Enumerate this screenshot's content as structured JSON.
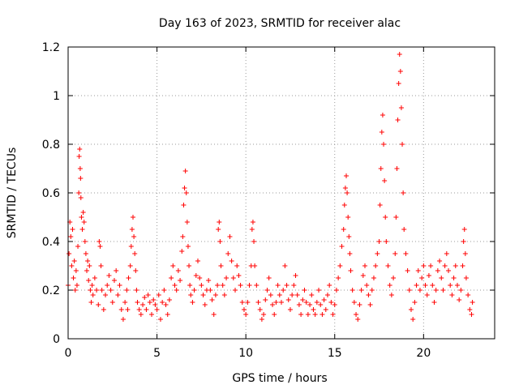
{
  "chart_data": {
    "type": "scatter",
    "title": "Day 163 of 2023, SRMTID for receiver alac",
    "xlabel": "GPS time / hours",
    "ylabel": "SRMTID / TECUs",
    "xlim": [
      0,
      24
    ],
    "ylim": [
      0,
      1.2
    ],
    "xticks": [
      0,
      5,
      10,
      15,
      20
    ],
    "xtick_labels": [
      "0",
      "5",
      "10",
      "15",
      "20"
    ],
    "yticks": [
      0,
      0.2,
      0.4,
      0.6,
      0.8,
      1,
      1.2
    ],
    "ytick_labels": [
      "0",
      "0.2",
      "0.4",
      "0.6",
      "0.8",
      "1",
      "1.2"
    ],
    "grid": true,
    "marker": "+",
    "color": "#ff0000",
    "series": [
      {
        "name": "SRMTID",
        "points": [
          [
            0.0,
            0.22
          ],
          [
            0.05,
            0.35
          ],
          [
            0.1,
            0.48
          ],
          [
            0.15,
            0.42
          ],
          [
            0.2,
            0.3
          ],
          [
            0.25,
            0.45
          ],
          [
            0.3,
            0.25
          ],
          [
            0.35,
            0.32
          ],
          [
            0.4,
            0.2
          ],
          [
            0.45,
            0.28
          ],
          [
            0.5,
            0.22
          ],
          [
            0.55,
            0.38
          ],
          [
            0.6,
            0.6
          ],
          [
            0.62,
            0.75
          ],
          [
            0.65,
            0.78
          ],
          [
            0.68,
            0.7
          ],
          [
            0.7,
            0.66
          ],
          [
            0.72,
            0.58
          ],
          [
            0.75,
            0.5
          ],
          [
            0.8,
            0.45
          ],
          [
            0.85,
            0.52
          ],
          [
            0.9,
            0.48
          ],
          [
            0.95,
            0.4
          ],
          [
            1.0,
            0.35
          ],
          [
            1.05,
            0.28
          ],
          [
            1.1,
            0.32
          ],
          [
            1.15,
            0.24
          ],
          [
            1.2,
            0.3
          ],
          [
            1.25,
            0.2
          ],
          [
            1.3,
            0.15
          ],
          [
            1.35,
            0.22
          ],
          [
            1.4,
            0.18
          ],
          [
            1.5,
            0.25
          ],
          [
            1.6,
            0.2
          ],
          [
            1.7,
            0.14
          ],
          [
            1.75,
            0.4
          ],
          [
            1.8,
            0.38
          ],
          [
            1.85,
            0.3
          ],
          [
            1.9,
            0.2
          ],
          [
            2.0,
            0.12
          ],
          [
            2.1,
            0.18
          ],
          [
            2.2,
            0.22
          ],
          [
            2.3,
            0.26
          ],
          [
            2.4,
            0.2
          ],
          [
            2.5,
            0.15
          ],
          [
            2.6,
            0.24
          ],
          [
            2.7,
            0.28
          ],
          [
            2.8,
            0.18
          ],
          [
            2.9,
            0.22
          ],
          [
            3.0,
            0.12
          ],
          [
            3.1,
            0.08
          ],
          [
            3.2,
            0.15
          ],
          [
            3.3,
            0.2
          ],
          [
            3.35,
            0.12
          ],
          [
            3.4,
            0.25
          ],
          [
            3.5,
            0.3
          ],
          [
            3.55,
            0.38
          ],
          [
            3.6,
            0.45
          ],
          [
            3.65,
            0.5
          ],
          [
            3.7,
            0.42
          ],
          [
            3.75,
            0.35
          ],
          [
            3.8,
            0.28
          ],
          [
            3.85,
            0.2
          ],
          [
            3.9,
            0.15
          ],
          [
            4.0,
            0.12
          ],
          [
            4.1,
            0.1
          ],
          [
            4.2,
            0.14
          ],
          [
            4.3,
            0.17
          ],
          [
            4.4,
            0.12
          ],
          [
            4.5,
            0.18
          ],
          [
            4.6,
            0.15
          ],
          [
            4.7,
            0.1
          ],
          [
            4.8,
            0.16
          ],
          [
            4.9,
            0.14
          ],
          [
            5.0,
            0.12
          ],
          [
            5.1,
            0.18
          ],
          [
            5.2,
            0.08
          ],
          [
            5.3,
            0.15
          ],
          [
            5.4,
            0.2
          ],
          [
            5.5,
            0.14
          ],
          [
            5.6,
            0.1
          ],
          [
            5.7,
            0.16
          ],
          [
            5.8,
            0.25
          ],
          [
            5.9,
            0.3
          ],
          [
            6.0,
            0.22
          ],
          [
            6.1,
            0.2
          ],
          [
            6.2,
            0.28
          ],
          [
            6.3,
            0.24
          ],
          [
            6.4,
            0.36
          ],
          [
            6.45,
            0.42
          ],
          [
            6.5,
            0.55
          ],
          [
            6.55,
            0.62
          ],
          [
            6.6,
            0.69
          ],
          [
            6.65,
            0.6
          ],
          [
            6.7,
            0.48
          ],
          [
            6.75,
            0.38
          ],
          [
            6.8,
            0.3
          ],
          [
            6.85,
            0.22
          ],
          [
            6.9,
            0.18
          ],
          [
            7.0,
            0.15
          ],
          [
            7.1,
            0.2
          ],
          [
            7.2,
            0.26
          ],
          [
            7.3,
            0.32
          ],
          [
            7.4,
            0.25
          ],
          [
            7.5,
            0.22
          ],
          [
            7.6,
            0.18
          ],
          [
            7.7,
            0.14
          ],
          [
            7.8,
            0.2
          ],
          [
            7.9,
            0.24
          ],
          [
            8.0,
            0.2
          ],
          [
            8.1,
            0.16
          ],
          [
            8.2,
            0.1
          ],
          [
            8.3,
            0.18
          ],
          [
            8.4,
            0.22
          ],
          [
            8.45,
            0.45
          ],
          [
            8.5,
            0.48
          ],
          [
            8.55,
            0.4
          ],
          [
            8.6,
            0.3
          ],
          [
            8.7,
            0.22
          ],
          [
            8.8,
            0.18
          ],
          [
            8.9,
            0.25
          ],
          [
            9.0,
            0.35
          ],
          [
            9.1,
            0.42
          ],
          [
            9.2,
            0.32
          ],
          [
            9.3,
            0.25
          ],
          [
            9.4,
            0.2
          ],
          [
            9.5,
            0.3
          ],
          [
            9.6,
            0.26
          ],
          [
            9.7,
            0.22
          ],
          [
            9.8,
            0.15
          ],
          [
            9.9,
            0.12
          ],
          [
            10.0,
            0.1
          ],
          [
            10.1,
            0.15
          ],
          [
            10.2,
            0.22
          ],
          [
            10.3,
            0.3
          ],
          [
            10.35,
            0.45
          ],
          [
            10.4,
            0.48
          ],
          [
            10.45,
            0.4
          ],
          [
            10.5,
            0.3
          ],
          [
            10.6,
            0.22
          ],
          [
            10.7,
            0.15
          ],
          [
            10.8,
            0.12
          ],
          [
            10.9,
            0.08
          ],
          [
            11.0,
            0.1
          ],
          [
            11.1,
            0.16
          ],
          [
            11.2,
            0.2
          ],
          [
            11.3,
            0.25
          ],
          [
            11.4,
            0.18
          ],
          [
            11.5,
            0.14
          ],
          [
            11.6,
            0.1
          ],
          [
            11.7,
            0.15
          ],
          [
            11.8,
            0.22
          ],
          [
            11.9,
            0.18
          ],
          [
            12.0,
            0.15
          ],
          [
            12.1,
            0.2
          ],
          [
            12.2,
            0.3
          ],
          [
            12.3,
            0.22
          ],
          [
            12.4,
            0.16
          ],
          [
            12.5,
            0.12
          ],
          [
            12.6,
            0.18
          ],
          [
            12.7,
            0.22
          ],
          [
            12.8,
            0.26
          ],
          [
            12.9,
            0.18
          ],
          [
            13.0,
            0.14
          ],
          [
            13.1,
            0.1
          ],
          [
            13.2,
            0.16
          ],
          [
            13.3,
            0.2
          ],
          [
            13.4,
            0.15
          ],
          [
            13.5,
            0.1
          ],
          [
            13.6,
            0.14
          ],
          [
            13.7,
            0.18
          ],
          [
            13.8,
            0.12
          ],
          [
            13.9,
            0.1
          ],
          [
            14.0,
            0.15
          ],
          [
            14.1,
            0.2
          ],
          [
            14.2,
            0.14
          ],
          [
            14.3,
            0.1
          ],
          [
            14.4,
            0.16
          ],
          [
            14.5,
            0.12
          ],
          [
            14.6,
            0.18
          ],
          [
            14.7,
            0.22
          ],
          [
            14.8,
            0.15
          ],
          [
            14.9,
            0.1
          ],
          [
            15.0,
            0.14
          ],
          [
            15.1,
            0.2
          ],
          [
            15.2,
            0.25
          ],
          [
            15.3,
            0.3
          ],
          [
            15.4,
            0.38
          ],
          [
            15.5,
            0.45
          ],
          [
            15.55,
            0.55
          ],
          [
            15.6,
            0.62
          ],
          [
            15.65,
            0.67
          ],
          [
            15.7,
            0.6
          ],
          [
            15.75,
            0.5
          ],
          [
            15.8,
            0.42
          ],
          [
            15.85,
            0.35
          ],
          [
            15.9,
            0.28
          ],
          [
            16.0,
            0.2
          ],
          [
            16.1,
            0.15
          ],
          [
            16.2,
            0.1
          ],
          [
            16.3,
            0.08
          ],
          [
            16.4,
            0.14
          ],
          [
            16.5,
            0.2
          ],
          [
            16.6,
            0.26
          ],
          [
            16.7,
            0.3
          ],
          [
            16.8,
            0.22
          ],
          [
            16.9,
            0.18
          ],
          [
            17.0,
            0.14
          ],
          [
            17.1,
            0.2
          ],
          [
            17.2,
            0.25
          ],
          [
            17.3,
            0.3
          ],
          [
            17.4,
            0.35
          ],
          [
            17.5,
            0.4
          ],
          [
            17.55,
            0.55
          ],
          [
            17.6,
            0.7
          ],
          [
            17.65,
            0.85
          ],
          [
            17.7,
            0.92
          ],
          [
            17.75,
            0.8
          ],
          [
            17.8,
            0.65
          ],
          [
            17.85,
            0.5
          ],
          [
            17.9,
            0.4
          ],
          [
            18.0,
            0.3
          ],
          [
            18.1,
            0.22
          ],
          [
            18.2,
            0.18
          ],
          [
            18.3,
            0.25
          ],
          [
            18.4,
            0.35
          ],
          [
            18.45,
            0.5
          ],
          [
            18.5,
            0.7
          ],
          [
            18.55,
            0.9
          ],
          [
            18.6,
            1.05
          ],
          [
            18.65,
            1.17
          ],
          [
            18.7,
            1.1
          ],
          [
            18.75,
            0.95
          ],
          [
            18.8,
            0.8
          ],
          [
            18.85,
            0.6
          ],
          [
            18.9,
            0.45
          ],
          [
            19.0,
            0.35
          ],
          [
            19.1,
            0.28
          ],
          [
            19.2,
            0.2
          ],
          [
            19.3,
            0.12
          ],
          [
            19.4,
            0.08
          ],
          [
            19.5,
            0.15
          ],
          [
            19.6,
            0.22
          ],
          [
            19.7,
            0.28
          ],
          [
            19.8,
            0.2
          ],
          [
            19.9,
            0.25
          ],
          [
            20.0,
            0.3
          ],
          [
            20.1,
            0.22
          ],
          [
            20.2,
            0.18
          ],
          [
            20.3,
            0.26
          ],
          [
            20.4,
            0.3
          ],
          [
            20.5,
            0.22
          ],
          [
            20.6,
            0.15
          ],
          [
            20.7,
            0.2
          ],
          [
            20.8,
            0.28
          ],
          [
            20.9,
            0.32
          ],
          [
            21.0,
            0.25
          ],
          [
            21.1,
            0.2
          ],
          [
            21.2,
            0.3
          ],
          [
            21.3,
            0.35
          ],
          [
            21.4,
            0.28
          ],
          [
            21.5,
            0.22
          ],
          [
            21.6,
            0.18
          ],
          [
            21.7,
            0.25
          ],
          [
            21.8,
            0.3
          ],
          [
            21.9,
            0.22
          ],
          [
            22.0,
            0.16
          ],
          [
            22.1,
            0.2
          ],
          [
            22.2,
            0.3
          ],
          [
            22.25,
            0.4
          ],
          [
            22.3,
            0.45
          ],
          [
            22.35,
            0.35
          ],
          [
            22.4,
            0.25
          ],
          [
            22.5,
            0.18
          ],
          [
            22.6,
            0.12
          ],
          [
            22.7,
            0.1
          ],
          [
            22.75,
            0.15
          ]
        ]
      }
    ]
  }
}
